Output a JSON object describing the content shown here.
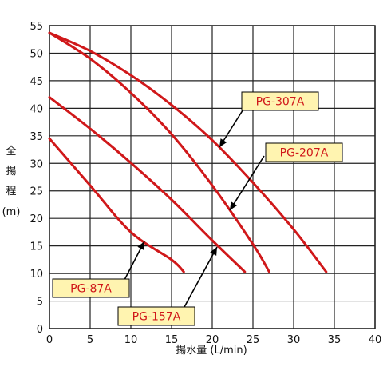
{
  "chart_data": {
    "type": "line",
    "xlabel": "揚水量 (L/min)",
    "ylabel_chars": [
      "全",
      "揚",
      "程",
      "(m)"
    ],
    "xlim": [
      0,
      40
    ],
    "ylim": [
      0,
      55
    ],
    "x_ticks": [
      0,
      5,
      10,
      15,
      20,
      25,
      30,
      35,
      40
    ],
    "y_ticks": [
      0,
      5,
      10,
      15,
      20,
      25,
      30,
      35,
      40,
      45,
      50,
      55
    ],
    "grid": true,
    "colors": {
      "curve": "#d0181a",
      "label_bg": "#fff4b0",
      "label_text": "#d0181a",
      "grid": "#222222"
    },
    "series": [
      {
        "name": "PG-87A",
        "x": [
          0,
          5,
          10,
          15,
          16.5
        ],
        "y": [
          34.5,
          26,
          17.5,
          12.5,
          10.3
        ]
      },
      {
        "name": "PG-157A",
        "x": [
          0,
          5,
          10,
          15,
          20,
          24
        ],
        "y": [
          42,
          36.3,
          30.1,
          23.4,
          16,
          10.3
        ]
      },
      {
        "name": "PG-207A",
        "x": [
          0,
          5,
          10,
          15,
          20,
          25,
          27
        ],
        "y": [
          53.7,
          49,
          42.8,
          35.3,
          26,
          15.3,
          10.3
        ]
      },
      {
        "name": "PG-307A",
        "x": [
          0,
          5,
          10,
          15,
          20,
          25,
          30,
          34
        ],
        "y": [
          53.7,
          50.4,
          46,
          40.6,
          34.2,
          26.5,
          18,
          10.3
        ]
      }
    ]
  }
}
